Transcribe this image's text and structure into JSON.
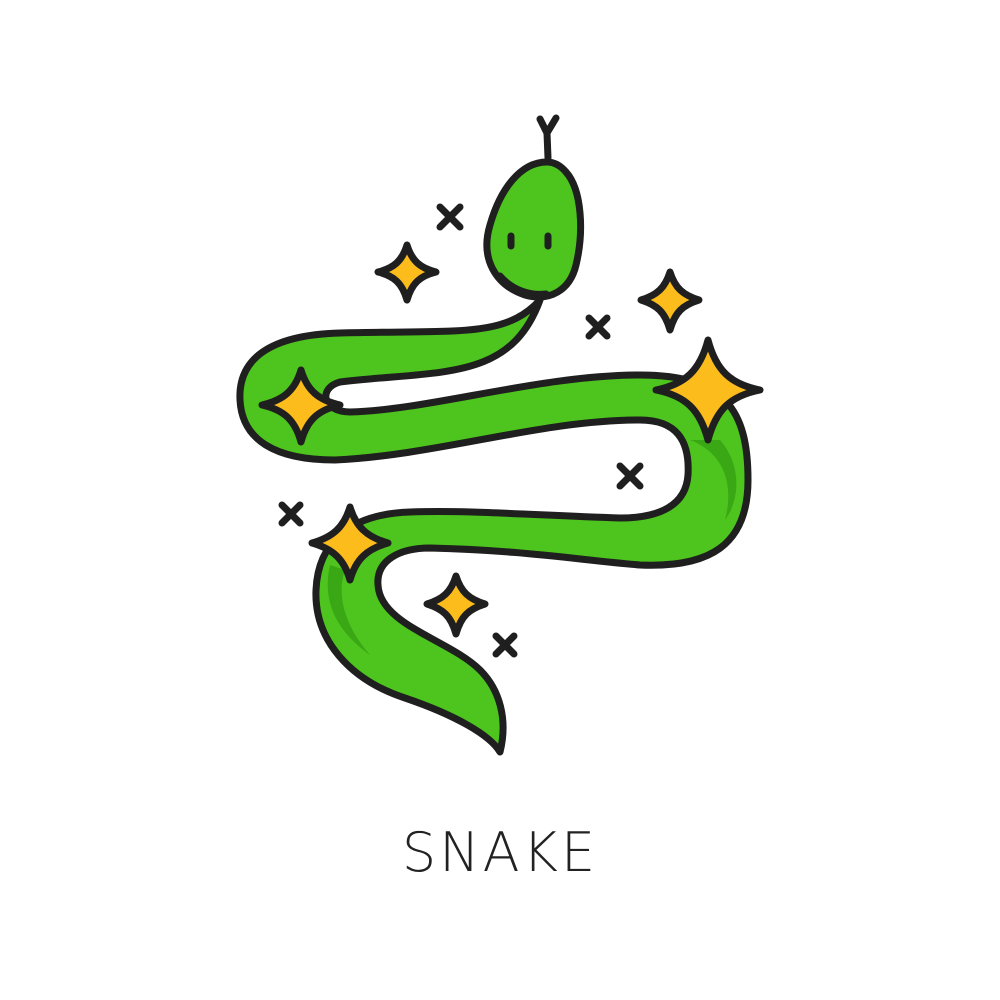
{
  "caption": {
    "text": "SNAKE"
  },
  "colors": {
    "snake_fill": "#4ec41e",
    "snake_shadow": "#3aa814",
    "sparkle_fill": "#fbbc1c",
    "outline": "#1f1f1f",
    "background": "#ffffff"
  },
  "icons": {
    "main": "snake-icon",
    "sparkles": "sparkle-star-icon",
    "crosses": "small-cross-icon"
  }
}
